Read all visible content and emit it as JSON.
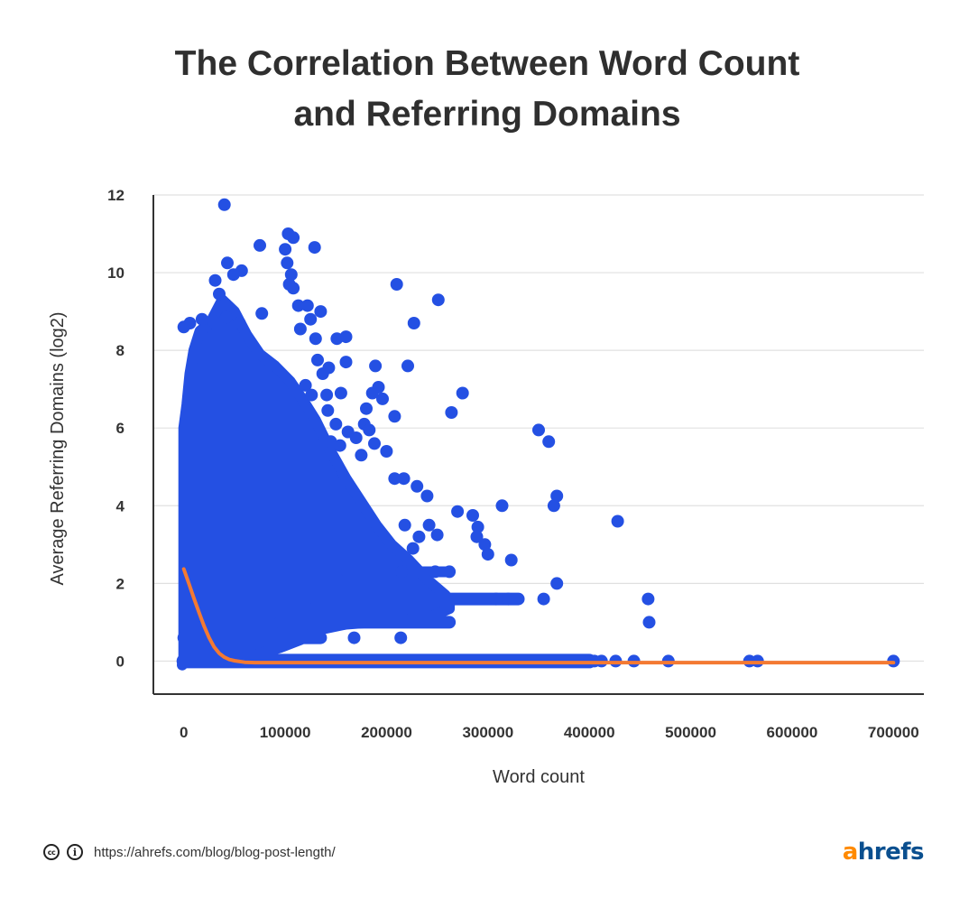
{
  "title_lines": [
    "The Correlation Between Word Count",
    "and Referring Domains"
  ],
  "footer": {
    "source_url": "https://ahrefs.com/blog/blog-post-length/",
    "brand_first": "a",
    "brand_rest": "hrefs"
  },
  "colors": {
    "points": "#2450e3",
    "trend": "#f47a32",
    "grid": "#e0e0e0",
    "axis": "#333333",
    "brand_orange": "#ff8a00",
    "brand_blue": "#0a4f8f"
  },
  "chart_data": {
    "type": "scatter",
    "title": "The Correlation Between Word Count and Referring Domains",
    "xlabel": "Word count",
    "ylabel": "Average Referring Domains (log2)",
    "xlim": [
      -30000,
      730000
    ],
    "ylim": [
      -0.85,
      12
    ],
    "xticks": [
      0,
      100000,
      200000,
      300000,
      400000,
      500000,
      600000,
      700000
    ],
    "yticks": [
      0,
      2,
      4,
      6,
      8,
      10,
      12
    ],
    "grid": "horizontal",
    "legend": "none",
    "series": [
      {
        "kind": "points",
        "points": [
          [
            40000,
            11.75
          ],
          [
            103000,
            11.0
          ],
          [
            108000,
            10.9
          ],
          [
            129000,
            10.65
          ],
          [
            75000,
            10.7
          ],
          [
            100000,
            10.6
          ],
          [
            43000,
            10.25
          ],
          [
            102000,
            10.25
          ],
          [
            106000,
            9.95
          ],
          [
            57000,
            10.05
          ],
          [
            31000,
            9.8
          ],
          [
            49000,
            9.95
          ],
          [
            35000,
            9.45
          ],
          [
            104000,
            9.7
          ],
          [
            108000,
            9.6
          ],
          [
            210000,
            9.7
          ],
          [
            251000,
            9.3
          ],
          [
            113000,
            9.15
          ],
          [
            122000,
            9.15
          ],
          [
            135000,
            9.0
          ],
          [
            77000,
            8.95
          ],
          [
            227000,
            8.7
          ],
          [
            125000,
            8.8
          ],
          [
            115000,
            8.55
          ],
          [
            160000,
            8.35
          ],
          [
            151000,
            8.3
          ],
          [
            130000,
            8.3
          ],
          [
            0,
            8.6
          ],
          [
            6000,
            8.7
          ],
          [
            18000,
            8.8
          ],
          [
            29000,
            8.75
          ],
          [
            42000,
            8.85
          ],
          [
            55000,
            8.7
          ],
          [
            189000,
            7.6
          ],
          [
            221000,
            7.6
          ],
          [
            160000,
            7.7
          ],
          [
            275000,
            6.9
          ],
          [
            264000,
            6.4
          ],
          [
            208000,
            6.3
          ],
          [
            350000,
            5.95
          ],
          [
            360000,
            5.65
          ],
          [
            192000,
            7.05
          ],
          [
            196000,
            6.75
          ],
          [
            178000,
            6.1
          ],
          [
            200000,
            5.4
          ],
          [
            188000,
            5.6
          ],
          [
            368000,
            4.25
          ],
          [
            365000,
            4.0
          ],
          [
            314000,
            4.0
          ],
          [
            428000,
            3.6
          ],
          [
            270000,
            3.85
          ],
          [
            285000,
            3.75
          ],
          [
            290000,
            3.45
          ],
          [
            323000,
            2.6
          ],
          [
            289000,
            3.2
          ],
          [
            297000,
            3.0
          ],
          [
            300000,
            2.75
          ],
          [
            368000,
            2.0
          ],
          [
            355000,
            1.6
          ],
          [
            458000,
            1.6
          ],
          [
            459000,
            1.0
          ],
          [
            320000,
            1.6
          ],
          [
            308000,
            1.6
          ],
          [
            248000,
            2.3
          ],
          [
            262000,
            2.3
          ],
          [
            217000,
            4.7
          ],
          [
            230000,
            4.5
          ],
          [
            240000,
            4.25
          ],
          [
            232000,
            3.2
          ],
          [
            208000,
            4.7
          ],
          [
            218000,
            3.5
          ],
          [
            226000,
            2.9
          ],
          [
            242000,
            3.5
          ],
          [
            250000,
            3.25
          ],
          [
            215000,
            2.3
          ],
          [
            168000,
            0.6
          ],
          [
            214000,
            0.6
          ],
          [
            142000,
            6.45
          ],
          [
            150000,
            6.1
          ],
          [
            162000,
            5.9
          ],
          [
            170000,
            5.75
          ],
          [
            183000,
            5.95
          ],
          [
            175000,
            5.3
          ],
          [
            143000,
            7.55
          ],
          [
            137000,
            7.4
          ],
          [
            180000,
            6.5
          ],
          [
            186000,
            6.9
          ],
          [
            155000,
            6.9
          ],
          [
            145000,
            5.65
          ],
          [
            132000,
            7.75
          ],
          [
            126000,
            6.85
          ],
          [
            120000,
            7.1
          ],
          [
            141000,
            6.85
          ],
          [
            154000,
            5.55
          ],
          [
            400000,
            0
          ],
          [
            405000,
            0
          ],
          [
            412000,
            0
          ],
          [
            426000,
            0
          ],
          [
            444000,
            0
          ],
          [
            478000,
            0
          ],
          [
            558000,
            0
          ],
          [
            566000,
            0
          ],
          [
            700000,
            0
          ]
        ]
      },
      {
        "kind": "trend",
        "points": [
          [
            0,
            2.37
          ],
          [
            5000,
            2.0
          ],
          [
            10000,
            1.62
          ],
          [
            15000,
            1.25
          ],
          [
            20000,
            0.9
          ],
          [
            25000,
            0.6
          ],
          [
            30000,
            0.36
          ],
          [
            35000,
            0.2
          ],
          [
            40000,
            0.1
          ],
          [
            45000,
            0.04
          ],
          [
            50000,
            0.01
          ],
          [
            60000,
            -0.03
          ],
          [
            70000,
            -0.04
          ],
          [
            100000,
            -0.04
          ],
          [
            200000,
            -0.04
          ],
          [
            300000,
            -0.04
          ],
          [
            400000,
            -0.04
          ],
          [
            500000,
            -0.04
          ],
          [
            600000,
            -0.04
          ],
          [
            700000,
            -0.04
          ]
        ]
      }
    ]
  }
}
